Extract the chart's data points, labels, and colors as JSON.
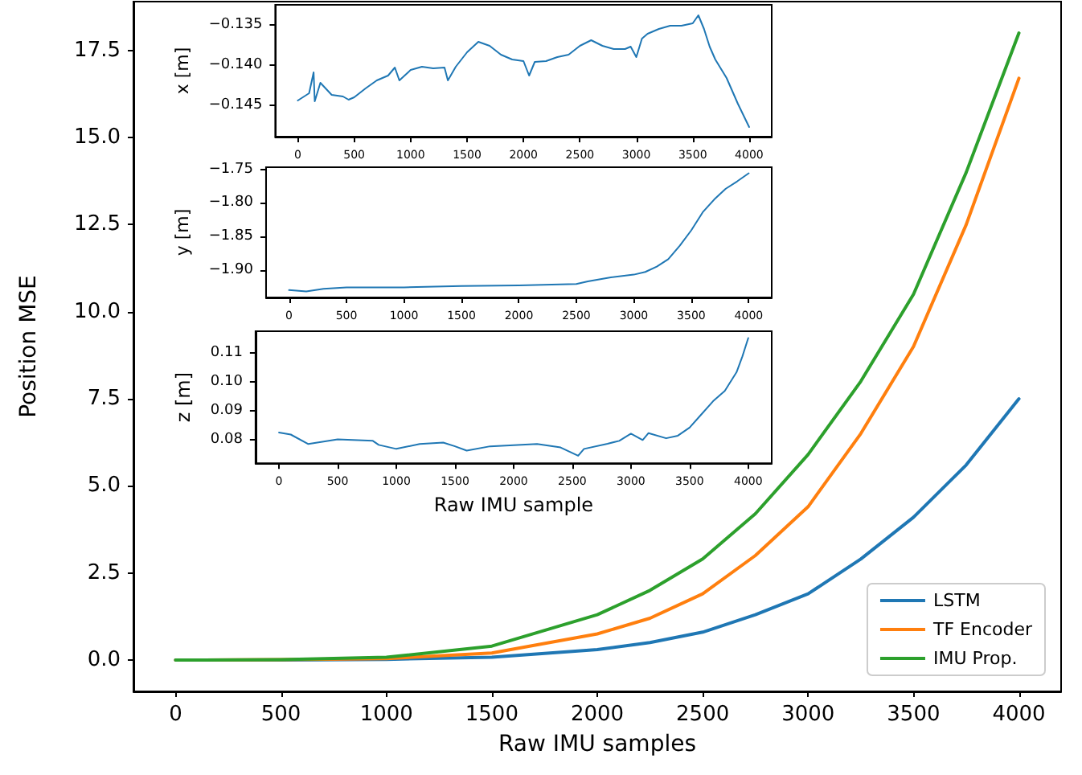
{
  "chart_data": [
    {
      "type": "line",
      "xlabel": "Raw IMU samples",
      "ylabel": "Position MSE",
      "legend": "bottom right",
      "marker": "none",
      "line_style": "solid",
      "x": [
        0,
        500,
        1000,
        1500,
        2000,
        2250,
        2500,
        2750,
        3000,
        3250,
        3500,
        3750,
        4000
      ],
      "xlim": [
        -200,
        4200
      ],
      "xticks": [
        0,
        500,
        1000,
        1500,
        2000,
        2500,
        3000,
        3500,
        4000
      ],
      "ylim": [
        -0.9,
        18.9
      ],
      "yticks": [
        {
          "value": 0,
          "label": "0.0"
        },
        {
          "value": 2.5,
          "label": "2.5"
        },
        {
          "value": 5,
          "label": "5.0"
        },
        {
          "value": 7.5,
          "label": "7.5"
        },
        {
          "value": 10,
          "label": "10.0"
        },
        {
          "value": 12.5,
          "label": "12.5"
        },
        {
          "value": 15,
          "label": "15.0"
        },
        {
          "value": 17.5,
          "label": "17.5"
        }
      ],
      "series": [
        {
          "name": "LSTM",
          "color": "#1f77b4",
          "values": [
            0,
            0,
            0.02,
            0.08,
            0.3,
            0.5,
            0.8,
            1.3,
            1.9,
            2.9,
            4.1,
            5.6,
            7.5
          ]
        },
        {
          "name": "TF Encoder",
          "color": "#ff7f0e",
          "values": [
            0,
            0.01,
            0.04,
            0.2,
            0.75,
            1.2,
            1.9,
            3.0,
            4.4,
            6.5,
            9.0,
            12.5,
            16.7
          ]
        },
        {
          "name": "IMU Prop.",
          "color": "#2ca02c",
          "values": [
            0,
            0.01,
            0.08,
            0.4,
            1.3,
            2.0,
            2.9,
            4.2,
            5.9,
            8.0,
            10.5,
            14.0,
            18.0
          ]
        }
      ]
    },
    {
      "type": "line",
      "ylabel": "x [m]",
      "marker": "none",
      "line_style": "solid",
      "xlim": [
        -200,
        4200
      ],
      "xticks": [
        0,
        500,
        1000,
        1500,
        2000,
        2500,
        3000,
        3500,
        4000
      ],
      "ylim": [
        -0.1489,
        -0.1325
      ],
      "yticks": [
        {
          "value": -0.145,
          "label": "−0.145"
        },
        {
          "value": -0.14,
          "label": "−0.140"
        },
        {
          "value": -0.135,
          "label": "−0.135"
        }
      ],
      "series": [
        {
          "color": "#1f77b4",
          "x": [
            0,
            100,
            140,
            150,
            200,
            300,
            400,
            450,
            500,
            600,
            700,
            800,
            860,
            900,
            1000,
            1100,
            1200,
            1300,
            1330,
            1400,
            1500,
            1600,
            1700,
            1800,
            1900,
            2000,
            2050,
            2100,
            2200,
            2300,
            2400,
            2500,
            2600,
            2700,
            2800,
            2900,
            2950,
            3000,
            3050,
            3100,
            3200,
            3300,
            3400,
            3500,
            3550,
            3600,
            3650,
            3700,
            3800,
            3900,
            4000
          ],
          "values": [
            -0.1444,
            -0.1435,
            -0.1409,
            -0.1445,
            -0.1422,
            -0.1437,
            -0.1439,
            -0.1443,
            -0.144,
            -0.1429,
            -0.1419,
            -0.1413,
            -0.1403,
            -0.1419,
            -0.1406,
            -0.1402,
            -0.1404,
            -0.1403,
            -0.1419,
            -0.1402,
            -0.1384,
            -0.1371,
            -0.1376,
            -0.1387,
            -0.1393,
            -0.1395,
            -0.1413,
            -0.1396,
            -0.1395,
            -0.139,
            -0.1387,
            -0.1376,
            -0.1369,
            -0.1376,
            -0.138,
            -0.138,
            -0.1377,
            -0.139,
            -0.1367,
            -0.1361,
            -0.1355,
            -0.1351,
            -0.1351,
            -0.1348,
            -0.1338,
            -0.1355,
            -0.1377,
            -0.1393,
            -0.1416,
            -0.1448,
            -0.1477
          ]
        }
      ]
    },
    {
      "type": "line",
      "ylabel": "y [m]",
      "marker": "none",
      "line_style": "solid",
      "xlim": [
        -200,
        4200
      ],
      "xticks": [
        0,
        500,
        1000,
        1500,
        2000,
        2500,
        3000,
        3500,
        4000
      ],
      "ylim": [
        -1.941,
        -1.747
      ],
      "yticks": [
        {
          "value": -1.9,
          "label": "−1.90"
        },
        {
          "value": -1.85,
          "label": "−1.85"
        },
        {
          "value": -1.8,
          "label": "−1.80"
        },
        {
          "value": -1.75,
          "label": "−1.75"
        }
      ],
      "series": [
        {
          "color": "#1f77b4",
          "x": [
            0,
            150,
            300,
            500,
            1000,
            1500,
            2000,
            2500,
            2600,
            2800,
            3000,
            3100,
            3200,
            3300,
            3400,
            3500,
            3600,
            3700,
            3800,
            3900,
            4000
          ],
          "values": [
            -1.93,
            -1.932,
            -1.928,
            -1.926,
            -1.926,
            -1.924,
            -1.923,
            -1.921,
            -1.917,
            -1.911,
            -1.907,
            -1.903,
            -1.895,
            -1.884,
            -1.864,
            -1.841,
            -1.814,
            -1.795,
            -1.779,
            -1.768,
            -1.756
          ]
        }
      ]
    },
    {
      "type": "line",
      "xlabel": "Raw IMU sample",
      "ylabel": "z [m]",
      "marker": "none",
      "line_style": "solid",
      "xlim": [
        -200,
        4200
      ],
      "xticks": [
        0,
        500,
        1000,
        1500,
        2000,
        2500,
        3000,
        3500,
        4000
      ],
      "ylim": [
        0.0717,
        0.1177
      ],
      "yticks": [
        {
          "value": 0.08,
          "label": "0.08"
        },
        {
          "value": 0.09,
          "label": "0.09"
        },
        {
          "value": 0.1,
          "label": "0.10"
        },
        {
          "value": 0.11,
          "label": "0.11"
        }
      ],
      "series": [
        {
          "color": "#1f77b4",
          "x": [
            0,
            100,
            250,
            500,
            800,
            850,
            1000,
            1200,
            1400,
            1500,
            1600,
            1800,
            2000,
            2200,
            2400,
            2550,
            2600,
            2800,
            2900,
            3000,
            3100,
            3150,
            3300,
            3400,
            3500,
            3600,
            3700,
            3800,
            3900,
            3950,
            4000
          ],
          "values": [
            0.0824,
            0.0817,
            0.0784,
            0.08,
            0.0795,
            0.0781,
            0.0767,
            0.0784,
            0.0789,
            0.0776,
            0.0761,
            0.0776,
            0.078,
            0.0784,
            0.0772,
            0.0743,
            0.0767,
            0.0785,
            0.0795,
            0.082,
            0.0798,
            0.0822,
            0.0804,
            0.0813,
            0.0841,
            0.0887,
            0.0933,
            0.0969,
            0.1034,
            0.1089,
            0.1153
          ]
        }
      ]
    }
  ]
}
